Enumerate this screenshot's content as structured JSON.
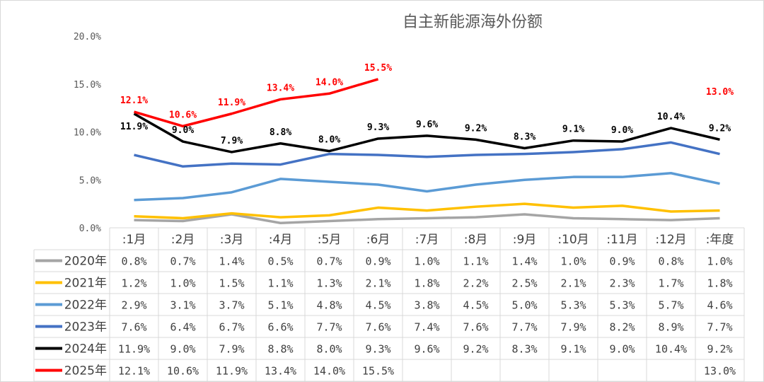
{
  "chart_data": {
    "type": "line",
    "title": "自主新能源海外份额",
    "xlabel": "",
    "ylabel": "",
    "ylim": [
      0,
      20
    ],
    "yticks": [
      "0.0%",
      "5.0%",
      "10.0%",
      "15.0%",
      "20.0%"
    ],
    "categories": [
      ":1月",
      ":2月",
      ":3月",
      ":4月",
      ":5月",
      ":6月",
      ":7月",
      ":8月",
      ":9月",
      ":10月",
      ":11月",
      ":12月",
      ":年度"
    ],
    "legend_position": "bottom-table",
    "series": [
      {
        "name": "2020年",
        "color": "#a5a5a5",
        "values": [
          0.8,
          0.7,
          1.4,
          0.5,
          0.7,
          0.9,
          1.0,
          1.1,
          1.4,
          1.0,
          0.9,
          0.8,
          1.0
        ],
        "labels": false
      },
      {
        "name": "2021年",
        "color": "#ffc000",
        "values": [
          1.2,
          1.0,
          1.5,
          1.1,
          1.3,
          2.1,
          1.8,
          2.2,
          2.5,
          2.1,
          2.3,
          1.7,
          1.8
        ],
        "labels": false
      },
      {
        "name": "2022年",
        "color": "#5b9bd5",
        "values": [
          2.9,
          3.1,
          3.7,
          5.1,
          4.8,
          4.5,
          3.8,
          4.5,
          5.0,
          5.3,
          5.3,
          5.7,
          4.6
        ],
        "labels": false
      },
      {
        "name": "2023年",
        "color": "#4472c4",
        "values": [
          7.6,
          6.4,
          6.7,
          6.6,
          7.7,
          7.6,
          7.4,
          7.6,
          7.7,
          7.9,
          8.2,
          8.9,
          7.7
        ],
        "labels": false
      },
      {
        "name": "2024年",
        "color": "#000000",
        "values": [
          11.9,
          9.0,
          7.9,
          8.8,
          8.0,
          9.3,
          9.6,
          9.2,
          8.3,
          9.1,
          9.0,
          10.4,
          9.2
        ],
        "labels": true
      },
      {
        "name": "2025年",
        "color": "#ff0000",
        "values": [
          12.1,
          10.6,
          11.9,
          13.4,
          14.0,
          15.5,
          null,
          null,
          null,
          null,
          null,
          null,
          13.0
        ],
        "labels": true,
        "line_until": 5
      }
    ]
  }
}
